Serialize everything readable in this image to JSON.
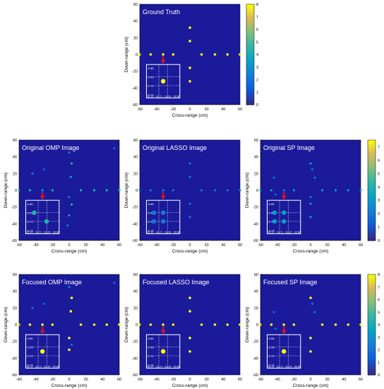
{
  "colors": {
    "background": "#1a1a9a",
    "marker_high": "#f5d328",
    "marker_mid": "#4dc6a8",
    "marker_low": "#4d7ee8",
    "arrow": "#e8121a",
    "inset_border": "#ffffff"
  },
  "shared": {
    "xlabel": "Cross-range (cm)",
    "ylabel": "Down-range (cm)",
    "x_ticks": [
      "-60",
      "-40",
      "-20",
      "0",
      "20",
      "40",
      "60"
    ],
    "y_ticks": [
      "60",
      "40",
      "20",
      "0",
      "-20",
      "-40",
      "-60"
    ],
    "inset_x_ticks": [
      "-32.14",
      "-31.71",
      "-31.29",
      "-30.86"
    ],
    "inset_y_ticks": [
      "-0.86",
      "-1.29",
      "-1.71",
      "-2.14"
    ],
    "colorbar_8_ticks": [
      "8",
      "7",
      "6",
      "5",
      "4",
      "3",
      "2",
      "1",
      "0"
    ],
    "colorbar_7_ticks": [
      "7",
      "6",
      "5",
      "4",
      "3",
      "2",
      "1",
      "0"
    ]
  },
  "chart_data": [
    {
      "type": "scatter",
      "title": "Ground Truth",
      "xlabel": "Cross-range (cm)",
      "ylabel": "Down-range (cm)",
      "xlim": [
        -60,
        60
      ],
      "ylim": [
        -60,
        60
      ],
      "clim": [
        0,
        8
      ],
      "points": [
        {
          "x": -60,
          "y": 0,
          "v": 8
        },
        {
          "x": -47,
          "y": 0,
          "v": 8
        },
        {
          "x": -32,
          "y": 0,
          "v": 8
        },
        {
          "x": -20,
          "y": 0,
          "v": 8
        },
        {
          "x": 0,
          "y": 32,
          "v": 8
        },
        {
          "x": 0,
          "y": 16,
          "v": 8
        },
        {
          "x": 0,
          "y": -16,
          "v": 8
        },
        {
          "x": 0,
          "y": -32,
          "v": 8
        },
        {
          "x": 14,
          "y": 0,
          "v": 8
        },
        {
          "x": 30,
          "y": 0,
          "v": 8
        },
        {
          "x": 45,
          "y": 0,
          "v": 8
        },
        {
          "x": 60,
          "y": 0,
          "v": 8
        }
      ],
      "inset": [
        {
          "x": -31.5,
          "y": -1.5,
          "v": 8
        }
      ]
    },
    {
      "type": "scatter",
      "title": "Original OMP Image",
      "xlabel": "Cross-range (cm)",
      "ylabel": "Down-range (cm)",
      "xlim": [
        -60,
        60
      ],
      "ylim": [
        -60,
        60
      ],
      "clim": [
        0,
        7.5
      ],
      "points": [
        {
          "x": -60,
          "y": 0,
          "v": 4
        },
        {
          "x": -47,
          "y": 0,
          "v": 4
        },
        {
          "x": -32,
          "y": 0,
          "v": 3
        },
        {
          "x": -20,
          "y": 0,
          "v": 4
        },
        {
          "x": -44,
          "y": 20,
          "v": 2
        },
        {
          "x": -20,
          "y": -15,
          "v": 2
        },
        {
          "x": -30,
          "y": 25,
          "v": 1.5
        },
        {
          "x": 0,
          "y": 45,
          "v": 2
        },
        {
          "x": 3,
          "y": 32,
          "v": 4
        },
        {
          "x": 2,
          "y": 16,
          "v": 3
        },
        {
          "x": 0,
          "y": -8,
          "v": 2
        },
        {
          "x": 3,
          "y": -17,
          "v": 4
        },
        {
          "x": 0,
          "y": -30,
          "v": 3
        },
        {
          "x": -2,
          "y": -42,
          "v": 2
        },
        {
          "x": 14,
          "y": 0,
          "v": 4
        },
        {
          "x": 30,
          "y": 0,
          "v": 4
        },
        {
          "x": 45,
          "y": 0,
          "v": 4
        },
        {
          "x": 60,
          "y": 0,
          "v": 4
        },
        {
          "x": 54,
          "y": 50,
          "v": 1.5
        }
      ],
      "inset": [
        {
          "x": -31.9,
          "y": -1.29,
          "v": 4
        },
        {
          "x": -31.3,
          "y": -1.71,
          "v": 4
        }
      ]
    },
    {
      "type": "scatter",
      "title": "Original LASSO Image",
      "xlabel": "Cross-range (cm)",
      "ylabel": "Down-range (cm)",
      "xlim": [
        -60,
        60
      ],
      "ylim": [
        -60,
        60
      ],
      "clim": [
        0,
        7.5
      ],
      "points": [
        {
          "x": -60,
          "y": 0,
          "v": 2
        },
        {
          "x": -47,
          "y": 0,
          "v": 2
        },
        {
          "x": -32,
          "y": 0,
          "v": 2
        },
        {
          "x": -20,
          "y": 0,
          "v": 2
        },
        {
          "x": 0,
          "y": 32,
          "v": 2
        },
        {
          "x": 0,
          "y": 16,
          "v": 2
        },
        {
          "x": 0,
          "y": -16,
          "v": 2
        },
        {
          "x": 0,
          "y": -32,
          "v": 2
        },
        {
          "x": 14,
          "y": 0,
          "v": 2
        },
        {
          "x": 30,
          "y": 0,
          "v": 2
        },
        {
          "x": 45,
          "y": 0,
          "v": 2
        },
        {
          "x": 60,
          "y": 0,
          "v": 2
        }
      ],
      "inset": [
        {
          "x": -31.95,
          "y": -1.29,
          "v": 2
        },
        {
          "x": -31.5,
          "y": -1.29,
          "v": 2
        },
        {
          "x": -31.95,
          "y": -1.71,
          "v": 2
        },
        {
          "x": -31.5,
          "y": -1.71,
          "v": 2
        }
      ]
    },
    {
      "type": "scatter",
      "title": "Original SP Image",
      "xlabel": "Cross-range (cm)",
      "ylabel": "Down-range (cm)",
      "xlim": [
        -60,
        60
      ],
      "ylim": [
        -60,
        60
      ],
      "clim": [
        0,
        7.5
      ],
      "points": [
        {
          "x": -60,
          "y": 0,
          "v": 3
        },
        {
          "x": -47,
          "y": 0,
          "v": 3
        },
        {
          "x": -32,
          "y": 0,
          "v": 2
        },
        {
          "x": -20,
          "y": 0,
          "v": 3
        },
        {
          "x": -44,
          "y": 15,
          "v": 1.5
        },
        {
          "x": -42,
          "y": -5,
          "v": 1.5
        },
        {
          "x": 0,
          "y": 32,
          "v": 3
        },
        {
          "x": 2,
          "y": 25,
          "v": 2
        },
        {
          "x": 5,
          "y": 15,
          "v": 2
        },
        {
          "x": 0,
          "y": -8,
          "v": 2
        },
        {
          "x": 0,
          "y": -16,
          "v": 3
        },
        {
          "x": 0,
          "y": -32,
          "v": 3
        },
        {
          "x": 14,
          "y": 0,
          "v": 3
        },
        {
          "x": 30,
          "y": 0,
          "v": 3
        },
        {
          "x": 45,
          "y": 0,
          "v": 3
        },
        {
          "x": 60,
          "y": 0,
          "v": 3
        }
      ],
      "inset": [
        {
          "x": -31.95,
          "y": -1.29,
          "v": 3
        },
        {
          "x": -31.5,
          "y": -1.29,
          "v": 3
        },
        {
          "x": -31.95,
          "y": -1.71,
          "v": 3
        },
        {
          "x": -31.5,
          "y": -1.71,
          "v": 3
        }
      ]
    },
    {
      "type": "scatter",
      "title": "Focused OMP Image",
      "xlabel": "Cross-range (cm)",
      "ylabel": "Down-range (cm)",
      "xlim": [
        -60,
        60
      ],
      "ylim": [
        -60,
        60
      ],
      "clim": [
        0,
        8
      ],
      "points": [
        {
          "x": -60,
          "y": 0,
          "v": 8
        },
        {
          "x": -47,
          "y": 0,
          "v": 8
        },
        {
          "x": -32,
          "y": 0,
          "v": 8
        },
        {
          "x": -20,
          "y": 0,
          "v": 8
        },
        {
          "x": -44,
          "y": 20,
          "v": 2
        },
        {
          "x": -30,
          "y": 25,
          "v": 1.5
        },
        {
          "x": 0,
          "y": 45,
          "v": 2
        },
        {
          "x": 3,
          "y": 32,
          "v": 8
        },
        {
          "x": 2,
          "y": 16,
          "v": 8
        },
        {
          "x": 0,
          "y": -16,
          "v": 8
        },
        {
          "x": 0,
          "y": -30,
          "v": 8
        },
        {
          "x": 3,
          "y": -24,
          "v": 2
        },
        {
          "x": 14,
          "y": 0,
          "v": 8
        },
        {
          "x": 30,
          "y": 0,
          "v": 8
        },
        {
          "x": 45,
          "y": 0,
          "v": 8
        },
        {
          "x": 60,
          "y": 0,
          "v": 8
        },
        {
          "x": 54,
          "y": 50,
          "v": 1.5
        }
      ],
      "inset": [
        {
          "x": -31.5,
          "y": -1.5,
          "v": 8
        }
      ]
    },
    {
      "type": "scatter",
      "title": "Focused LASSO Image",
      "xlabel": "Cross-range (cm)",
      "ylabel": "Down-range (cm)",
      "xlim": [
        -60,
        60
      ],
      "ylim": [
        -60,
        60
      ],
      "clim": [
        0,
        8
      ],
      "points": [
        {
          "x": -60,
          "y": 0,
          "v": 8
        },
        {
          "x": -47,
          "y": 0,
          "v": 8
        },
        {
          "x": -32,
          "y": 0,
          "v": 8
        },
        {
          "x": -20,
          "y": 0,
          "v": 8
        },
        {
          "x": 0,
          "y": 32,
          "v": 8
        },
        {
          "x": 0,
          "y": 16,
          "v": 8
        },
        {
          "x": 0,
          "y": -16,
          "v": 8
        },
        {
          "x": 0,
          "y": -32,
          "v": 8
        },
        {
          "x": 14,
          "y": 0,
          "v": 8
        },
        {
          "x": 30,
          "y": 0,
          "v": 8
        },
        {
          "x": 45,
          "y": 0,
          "v": 8
        },
        {
          "x": 60,
          "y": 0,
          "v": 8
        }
      ],
      "inset": [
        {
          "x": -31.5,
          "y": -1.5,
          "v": 8
        }
      ]
    },
    {
      "type": "scatter",
      "title": "Focused SP Image",
      "xlabel": "Cross-range (cm)",
      "ylabel": "Down-range (cm)",
      "xlim": [
        -60,
        60
      ],
      "ylim": [
        -60,
        60
      ],
      "clim": [
        0,
        8
      ],
      "points": [
        {
          "x": -60,
          "y": 0,
          "v": 8
        },
        {
          "x": -47,
          "y": 0,
          "v": 8
        },
        {
          "x": -32,
          "y": 0,
          "v": 8
        },
        {
          "x": -20,
          "y": 0,
          "v": 8
        },
        {
          "x": -44,
          "y": 15,
          "v": 1.5
        },
        {
          "x": -42,
          "y": -5,
          "v": 1.5
        },
        {
          "x": 0,
          "y": 32,
          "v": 8
        },
        {
          "x": 2,
          "y": 25,
          "v": 2
        },
        {
          "x": 5,
          "y": 15,
          "v": 2
        },
        {
          "x": 0,
          "y": -16,
          "v": 8
        },
        {
          "x": 0,
          "y": -32,
          "v": 8
        },
        {
          "x": 14,
          "y": 0,
          "v": 8
        },
        {
          "x": 30,
          "y": 0,
          "v": 8
        },
        {
          "x": 45,
          "y": 0,
          "v": 8
        },
        {
          "x": 60,
          "y": 0,
          "v": 8
        }
      ],
      "inset": [
        {
          "x": -31.5,
          "y": -1.5,
          "v": 8
        }
      ]
    }
  ]
}
